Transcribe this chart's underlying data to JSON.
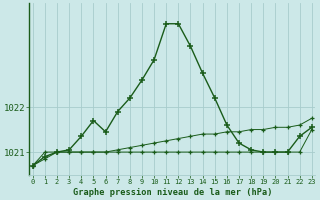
{
  "title": "Graphe pression niveau de la mer (hPa)",
  "background_color": "#cce8e8",
  "grid_color": "#a8cccc",
  "line_color": "#1a5c1a",
  "hours": [
    0,
    1,
    2,
    3,
    4,
    5,
    6,
    7,
    8,
    9,
    10,
    11,
    12,
    13,
    14,
    15,
    16,
    17,
    18,
    19,
    20,
    21,
    22,
    23
  ],
  "pressure_main": [
    1020.7,
    1020.9,
    1021.0,
    1021.05,
    1021.35,
    1021.7,
    1021.45,
    1021.9,
    1022.2,
    1022.6,
    1023.05,
    1023.85,
    1023.85,
    1023.35,
    1022.75,
    1022.2,
    1021.6,
    1021.2,
    1021.05,
    1021.0,
    1021.0,
    1021.0,
    1021.35,
    1021.55
  ],
  "pressure_flat": [
    1020.7,
    1021.0,
    1021.0,
    1021.0,
    1021.0,
    1021.0,
    1021.0,
    1021.0,
    1021.0,
    1021.0,
    1021.0,
    1021.0,
    1021.0,
    1021.0,
    1021.0,
    1021.0,
    1021.0,
    1021.0,
    1021.0,
    1021.0,
    1021.0,
    1021.0,
    1021.0,
    1021.5
  ],
  "pressure_diag": [
    1020.7,
    1020.85,
    1021.0,
    1021.0,
    1021.0,
    1021.0,
    1021.0,
    1021.05,
    1021.1,
    1021.15,
    1021.2,
    1021.25,
    1021.3,
    1021.35,
    1021.4,
    1021.4,
    1021.45,
    1021.45,
    1021.5,
    1021.5,
    1021.55,
    1021.55,
    1021.6,
    1021.75
  ],
  "ylim": [
    1020.5,
    1024.3
  ],
  "yticks": [
    1021,
    1022
  ],
  "xlim": [
    -0.3,
    23.3
  ]
}
